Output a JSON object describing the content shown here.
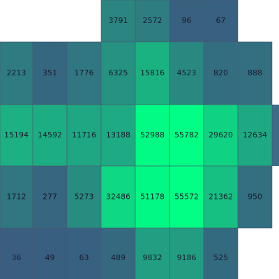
{
  "chart_data": {
    "type": "heatmap",
    "rows": [
      [
        null,
        null,
        null,
        3791,
        2572,
        96,
        67,
        null
      ],
      [
        2213,
        351,
        1776,
        6325,
        15816,
        4523,
        820,
        888
      ],
      [
        15194,
        14592,
        11716,
        13188,
        52988,
        55782,
        29620,
        12634
      ],
      [
        1712,
        277,
        5273,
        32486,
        51178,
        55572,
        21362,
        950
      ],
      [
        36,
        49,
        63,
        489,
        9832,
        9186,
        525,
        null
      ]
    ],
    "colors": [
      "#3a5a80",
      "#00ff84"
    ]
  }
}
